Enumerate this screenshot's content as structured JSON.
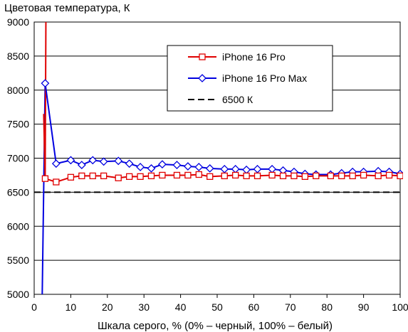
{
  "chart_data": {
    "type": "line",
    "ylabel": "Цветовая температура, К",
    "xlabel": "Шкала серого, % (0% – черный, 100% – белый)",
    "xlim": [
      0,
      100
    ],
    "ylim": [
      5000,
      9000
    ],
    "x_ticks": [
      0,
      10,
      20,
      30,
      40,
      50,
      60,
      70,
      80,
      90,
      100
    ],
    "y_ticks": [
      5000,
      5500,
      6000,
      6500,
      7000,
      7500,
      8000,
      8500,
      9000
    ],
    "grid": "horizontal",
    "legend_position": "top-right",
    "series": [
      {
        "name": "iPhone 16 Pro",
        "color": "#e00000",
        "marker": "square",
        "x": [
          3,
          6,
          10,
          13,
          16,
          19,
          23,
          26,
          29,
          32,
          35,
          39,
          42,
          45,
          48,
          52,
          55,
          58,
          61,
          65,
          68,
          71,
          74,
          77,
          81,
          84,
          87,
          90,
          94,
          97,
          100
        ],
        "y": [
          6700,
          6650,
          6720,
          6740,
          6740,
          6740,
          6710,
          6730,
          6730,
          6740,
          6750,
          6750,
          6750,
          6760,
          6730,
          6740,
          6750,
          6740,
          6740,
          6750,
          6740,
          6740,
          6730,
          6740,
          6740,
          6740,
          6740,
          6750,
          6740,
          6750,
          6740
        ]
      },
      {
        "name": "iPhone 16 Pro Max",
        "color": "#0000e0",
        "marker": "diamond",
        "x": [
          3,
          6,
          10,
          13,
          16,
          19,
          23,
          26,
          29,
          32,
          35,
          39,
          42,
          45,
          48,
          52,
          55,
          58,
          61,
          65,
          68,
          71,
          74,
          77,
          81,
          84,
          87,
          90,
          94,
          97,
          100
        ],
        "y": [
          8100,
          6920,
          6970,
          6900,
          6970,
          6950,
          6960,
          6920,
          6870,
          6850,
          6910,
          6900,
          6880,
          6870,
          6850,
          6840,
          6840,
          6830,
          6840,
          6840,
          6820,
          6800,
          6770,
          6760,
          6760,
          6780,
          6800,
          6800,
          6810,
          6800,
          6770
        ]
      },
      {
        "name": "6500 К",
        "color": "#000000",
        "style": "dashed",
        "x": [
          0,
          100
        ],
        "y": [
          6500,
          6500
        ]
      }
    ]
  }
}
